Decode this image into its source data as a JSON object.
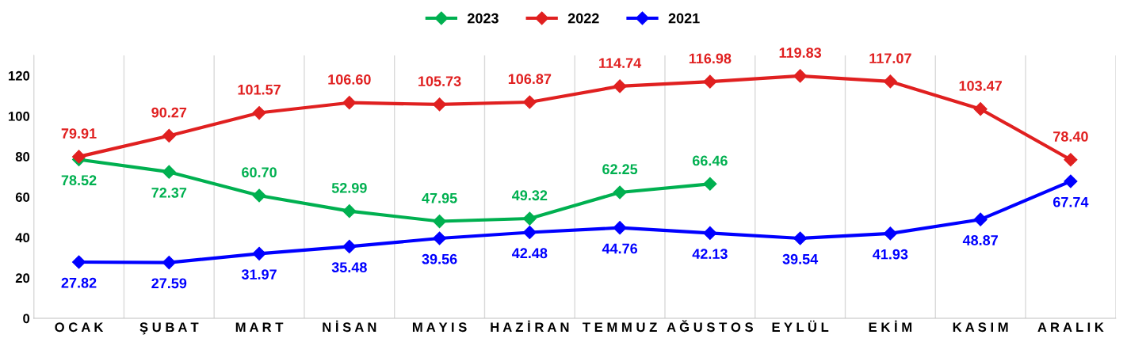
{
  "chart_data": {
    "type": "line",
    "categories": [
      "O C A K",
      "Ş U B A T",
      "M A R T",
      "N İ S A N",
      "M A Y I S",
      "H A Z İ R A N",
      "T E M M U Z",
      "A Ğ U S T O S",
      "E Y L Ü L",
      "E K İ M",
      "K A S I M",
      "A R A L I K"
    ],
    "series": [
      {
        "name": "2023",
        "color": "#00b050",
        "values": [
          78.52,
          72.37,
          60.7,
          52.99,
          47.95,
          49.32,
          62.25,
          66.46,
          null,
          null,
          null,
          null
        ],
        "value_labels": [
          "78.52",
          "72.37",
          "60.70",
          "52.99",
          "47.95",
          "49.32",
          "62.25",
          "66.46",
          null,
          null,
          null,
          null
        ]
      },
      {
        "name": "2022",
        "color": "#e02020",
        "values": [
          79.91,
          90.27,
          101.57,
          106.6,
          105.73,
          106.87,
          114.74,
          116.98,
          119.83,
          117.07,
          103.47,
          78.4
        ],
        "value_labels": [
          "79.91",
          "90.27",
          "101.57",
          "106.60",
          "105.73",
          "106.87",
          "114.74",
          "116.98",
          "119.83",
          "117.07",
          "103.47",
          "78.40"
        ]
      },
      {
        "name": "2021",
        "color": "#0000ff",
        "values": [
          27.82,
          27.59,
          31.97,
          35.48,
          39.56,
          42.48,
          44.76,
          42.13,
          39.54,
          41.93,
          48.87,
          67.74
        ],
        "value_labels": [
          "27.82",
          "27.59",
          "31.97",
          "35.48",
          "39.56",
          "42.48",
          "44.76",
          "42.13",
          "39.54",
          "41.93",
          "48.87",
          "67.74"
        ]
      }
    ],
    "ylim": [
      0,
      130
    ],
    "yticks": [
      0,
      20,
      40,
      60,
      80,
      100,
      120
    ],
    "grid": "x",
    "legend": "top",
    "marker": "diamond",
    "line_style": "solid"
  }
}
